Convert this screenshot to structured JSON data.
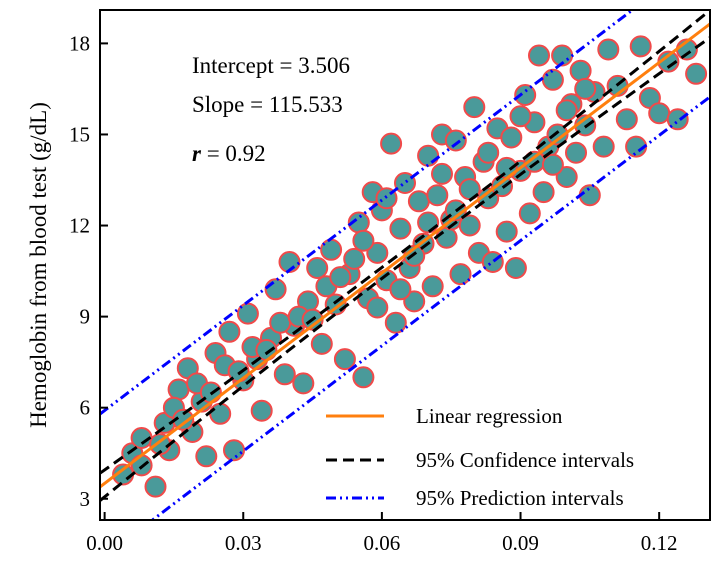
{
  "chart_data": {
    "type": "scatter",
    "xlabel": "",
    "ylabel": "Hemoglobin from blood test (g/dL)",
    "xlim": [
      -0.001,
      0.131
    ],
    "ylim": [
      2.3,
      19.1
    ],
    "x_ticks": [
      "0.00",
      "0.03",
      "0.06",
      "0.09",
      "0.12"
    ],
    "y_ticks": [
      "3",
      "6",
      "9",
      "12",
      "15",
      "18"
    ],
    "annotations": {
      "intercept": "Intercept = 3.506",
      "slope": "Slope = 115.533",
      "r_symbol": "r",
      "r_value": " = 0.92"
    },
    "regression": {
      "intercept": 3.506,
      "slope": 115.533
    },
    "confidence_band": {
      "half_width_at_ends": 0.45
    },
    "prediction_band": {
      "half_width": 2.4
    },
    "legend": {
      "position": "bottom-right",
      "entries": [
        {
          "label": "Linear regression",
          "color": "#ff7f0e",
          "style": "solid"
        },
        {
          "label": "95% Confidence intervals",
          "color": "#000000",
          "style": "dashed"
        },
        {
          "label": "95% Prediction intervals",
          "color": "#0000ff",
          "style": "dashdotdot"
        }
      ]
    },
    "marker": {
      "fill": "#4a9a9a",
      "edge": "#f04a4a"
    },
    "points": [
      [
        0.004,
        3.8
      ],
      [
        0.006,
        4.5
      ],
      [
        0.008,
        4.1
      ],
      [
        0.011,
        3.4
      ],
      [
        0.013,
        5.5
      ],
      [
        0.014,
        4.6
      ],
      [
        0.016,
        6.6
      ],
      [
        0.018,
        7.3
      ],
      [
        0.019,
        5.2
      ],
      [
        0.021,
        6.2
      ],
      [
        0.022,
        4.4
      ],
      [
        0.024,
        7.8
      ],
      [
        0.025,
        5.8
      ],
      [
        0.027,
        8.5
      ],
      [
        0.028,
        4.6
      ],
      [
        0.03,
        6.9
      ],
      [
        0.031,
        9.1
      ],
      [
        0.033,
        7.6
      ],
      [
        0.034,
        5.9
      ],
      [
        0.036,
        8.3
      ],
      [
        0.037,
        9.9
      ],
      [
        0.039,
        7.1
      ],
      [
        0.04,
        10.8
      ],
      [
        0.041,
        8.7
      ],
      [
        0.043,
        6.8
      ],
      [
        0.044,
        9.5
      ],
      [
        0.046,
        10.6
      ],
      [
        0.047,
        8.1
      ],
      [
        0.049,
        11.2
      ],
      [
        0.05,
        9.4
      ],
      [
        0.052,
        7.6
      ],
      [
        0.053,
        10.4
      ],
      [
        0.055,
        12.1
      ],
      [
        0.056,
        7.0
      ],
      [
        0.057,
        9.6
      ],
      [
        0.058,
        13.1
      ],
      [
        0.059,
        11.1
      ],
      [
        0.06,
        12.5
      ],
      [
        0.061,
        10.2
      ],
      [
        0.062,
        14.7
      ],
      [
        0.063,
        8.8
      ],
      [
        0.064,
        11.9
      ],
      [
        0.065,
        13.4
      ],
      [
        0.066,
        10.6
      ],
      [
        0.067,
        9.5
      ],
      [
        0.068,
        12.8
      ],
      [
        0.069,
        11.4
      ],
      [
        0.07,
        14.3
      ],
      [
        0.071,
        10.0
      ],
      [
        0.072,
        13.0
      ],
      [
        0.073,
        15.0
      ],
      [
        0.074,
        11.6
      ],
      [
        0.075,
        12.2
      ],
      [
        0.076,
        14.8
      ],
      [
        0.077,
        10.4
      ],
      [
        0.078,
        13.6
      ],
      [
        0.079,
        12.0
      ],
      [
        0.08,
        15.9
      ],
      [
        0.081,
        11.1
      ],
      [
        0.082,
        14.1
      ],
      [
        0.083,
        12.9
      ],
      [
        0.084,
        10.8
      ],
      [
        0.085,
        15.2
      ],
      [
        0.086,
        13.3
      ],
      [
        0.087,
        11.8
      ],
      [
        0.088,
        14.9
      ],
      [
        0.089,
        10.6
      ],
      [
        0.09,
        13.8
      ],
      [
        0.091,
        16.3
      ],
      [
        0.092,
        12.4
      ],
      [
        0.093,
        15.4
      ],
      [
        0.094,
        17.6
      ],
      [
        0.095,
        13.1
      ],
      [
        0.096,
        14.6
      ],
      [
        0.097,
        16.8
      ],
      [
        0.098,
        15.0
      ],
      [
        0.099,
        17.6
      ],
      [
        0.1,
        13.6
      ],
      [
        0.101,
        16.0
      ],
      [
        0.102,
        14.4
      ],
      [
        0.103,
        17.1
      ],
      [
        0.104,
        15.3
      ],
      [
        0.105,
        13.0
      ],
      [
        0.106,
        16.4
      ],
      [
        0.108,
        14.6
      ],
      [
        0.109,
        17.8
      ],
      [
        0.111,
        16.6
      ],
      [
        0.113,
        15.5
      ],
      [
        0.115,
        14.6
      ],
      [
        0.116,
        17.9
      ],
      [
        0.118,
        16.2
      ],
      [
        0.12,
        15.7
      ],
      [
        0.122,
        17.4
      ],
      [
        0.124,
        15.5
      ],
      [
        0.126,
        17.8
      ],
      [
        0.128,
        17.0
      ],
      [
        0.008,
        5.0
      ],
      [
        0.012,
        4.8
      ],
      [
        0.015,
        6.0
      ],
      [
        0.017,
        5.6
      ],
      [
        0.02,
        6.8
      ],
      [
        0.023,
        6.5
      ],
      [
        0.026,
        7.4
      ],
      [
        0.029,
        7.2
      ],
      [
        0.032,
        8.0
      ],
      [
        0.035,
        7.9
      ],
      [
        0.038,
        8.8
      ],
      [
        0.042,
        9.0
      ],
      [
        0.045,
        8.9
      ],
      [
        0.048,
        10.0
      ],
      [
        0.051,
        10.3
      ],
      [
        0.054,
        10.9
      ],
      [
        0.056,
        11.5
      ],
      [
        0.059,
        9.3
      ],
      [
        0.061,
        12.9
      ],
      [
        0.064,
        9.9
      ],
      [
        0.067,
        11.0
      ],
      [
        0.07,
        12.1
      ],
      [
        0.073,
        13.7
      ],
      [
        0.076,
        12.5
      ],
      [
        0.079,
        13.2
      ],
      [
        0.083,
        14.4
      ],
      [
        0.087,
        13.9
      ],
      [
        0.09,
        15.6
      ],
      [
        0.093,
        14.1
      ],
      [
        0.097,
        14.0
      ],
      [
        0.1,
        15.8
      ],
      [
        0.104,
        16.5
      ]
    ]
  }
}
